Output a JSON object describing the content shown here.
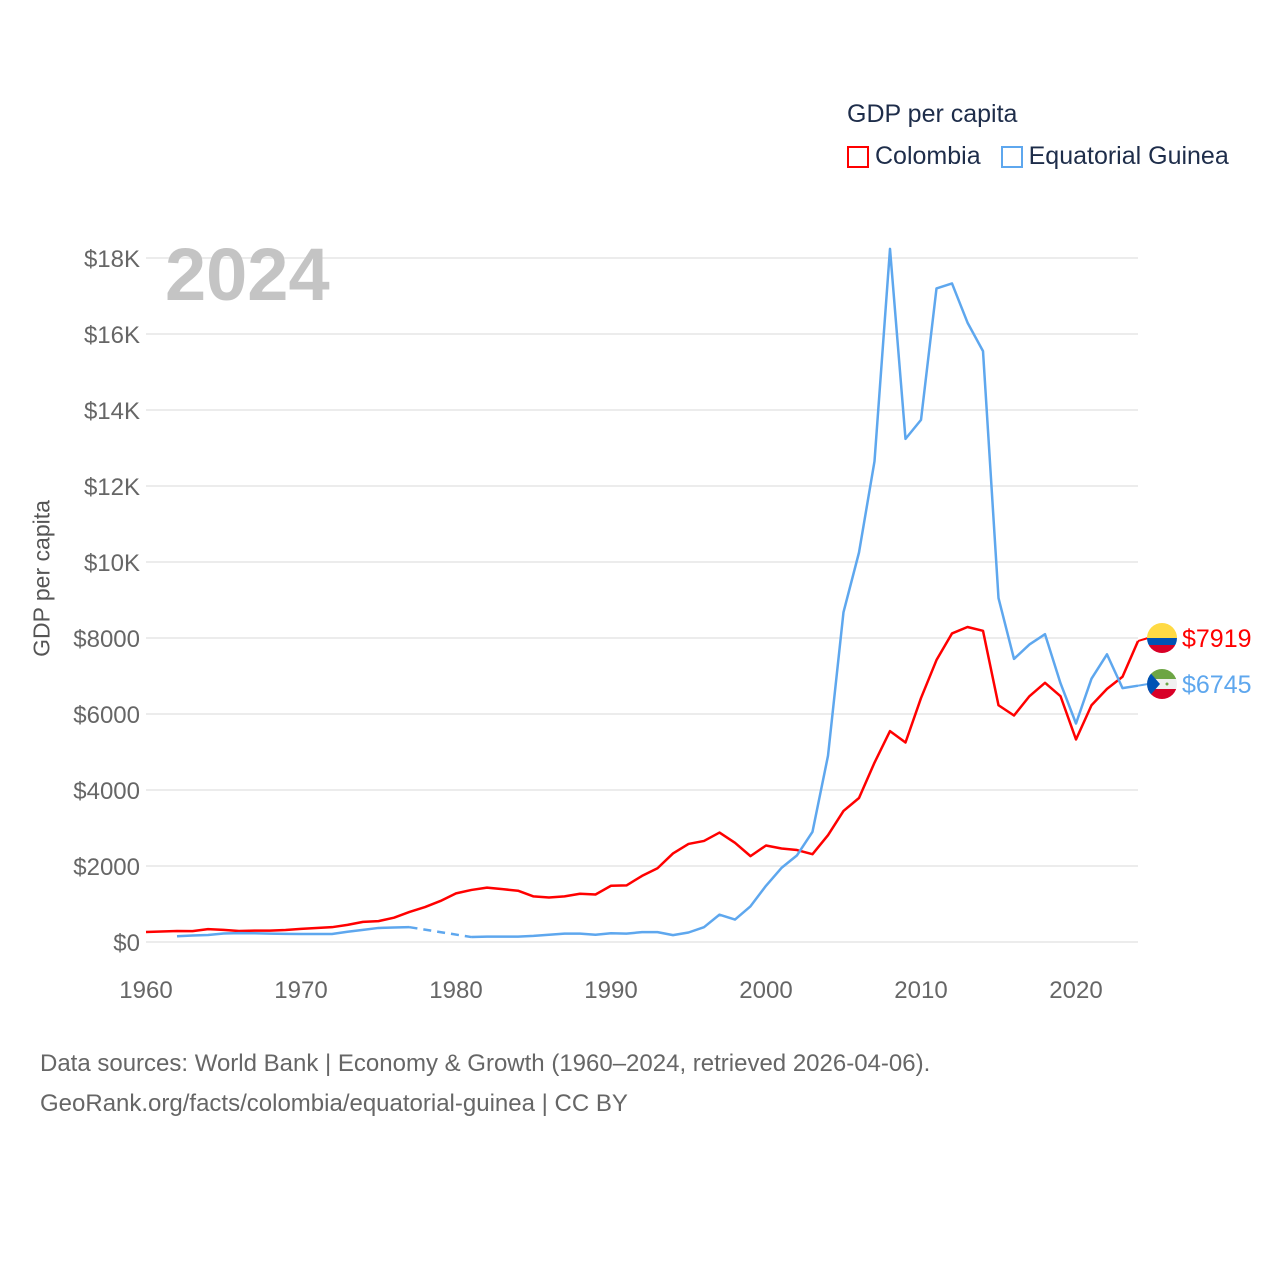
{
  "chart_data": {
    "type": "line",
    "legend_title": "GDP per capita",
    "ylabel": "GDP per capita",
    "year_label": "2024",
    "xlim": [
      1960,
      2024
    ],
    "ylim": [
      0,
      18000
    ],
    "grid": true,
    "legend_position": "top-right",
    "x_ticks": [
      1960,
      1970,
      1980,
      1990,
      2000,
      2010,
      2020
    ],
    "x_tick_labels": [
      "1960",
      "1970",
      "1980",
      "1990",
      "2000",
      "2010",
      "2020"
    ],
    "y_ticks": [
      0,
      2000,
      4000,
      6000,
      8000,
      10000,
      12000,
      14000,
      16000,
      18000
    ],
    "y_tick_labels": [
      "$0",
      "$2000",
      "$4000",
      "$6000",
      "$8000",
      "$10K",
      "$12K",
      "$14K",
      "$16K",
      "$18K"
    ],
    "x": [
      1960,
      1961,
      1962,
      1963,
      1964,
      1965,
      1966,
      1967,
      1968,
      1969,
      1970,
      1971,
      1972,
      1973,
      1974,
      1975,
      1976,
      1977,
      1978,
      1979,
      1980,
      1981,
      1982,
      1983,
      1984,
      1985,
      1986,
      1987,
      1988,
      1989,
      1990,
      1991,
      1992,
      1993,
      1994,
      1995,
      1996,
      1997,
      1998,
      1999,
      2000,
      2001,
      2002,
      2003,
      2004,
      2005,
      2006,
      2007,
      2008,
      2009,
      2010,
      2011,
      2012,
      2013,
      2014,
      2015,
      2016,
      2017,
      2018,
      2019,
      2020,
      2021,
      2022,
      2023,
      2024
    ],
    "series": [
      {
        "name": "Colombia",
        "color": "#ff0000",
        "end_label": "$7919",
        "values": [
          263,
          275,
          290,
          285,
          340,
          320,
          290,
          300,
          300,
          315,
          345,
          370,
          390,
          450,
          530,
          550,
          640,
          790,
          920,
          1080,
          1280,
          1370,
          1430,
          1390,
          1350,
          1200,
          1170,
          1200,
          1270,
          1250,
          1480,
          1490,
          1740,
          1940,
          2330,
          2580,
          2660,
          2880,
          2610,
          2260,
          2540,
          2460,
          2420,
          2310,
          2810,
          3450,
          3790,
          4720,
          5550,
          5250,
          6420,
          7420,
          8120,
          8290,
          8190,
          6230,
          5960,
          6470,
          6820,
          6470,
          5330,
          6230,
          6660,
          6980,
          7919
        ]
      },
      {
        "name": "Equatorial Guinea",
        "color": "#5ea7ee",
        "end_label": "$6745",
        "values": [
          null,
          null,
          150,
          170,
          185,
          225,
          235,
          230,
          220,
          215,
          210,
          210,
          210,
          270,
          320,
          370,
          380,
          390,
          null,
          null,
          null,
          130,
          140,
          140,
          140,
          160,
          190,
          220,
          220,
          190,
          230,
          220,
          260,
          260,
          180,
          250,
          390,
          720,
          590,
          940,
          1480,
          1950,
          2280,
          2900,
          4900,
          8680,
          10250,
          12650,
          18240,
          13240,
          13740,
          17200,
          17330,
          16300,
          15550,
          9050,
          7450,
          7830,
          8100,
          6810,
          5750,
          6930,
          7570,
          6680,
          6745
        ]
      }
    ]
  },
  "footer": {
    "line1": "Data sources: World Bank | Economy & Growth (1960–2024, retrieved 2026-04-06).",
    "line2": "GeoRank.org/facts/colombia/equatorial-guinea | CC BY"
  }
}
